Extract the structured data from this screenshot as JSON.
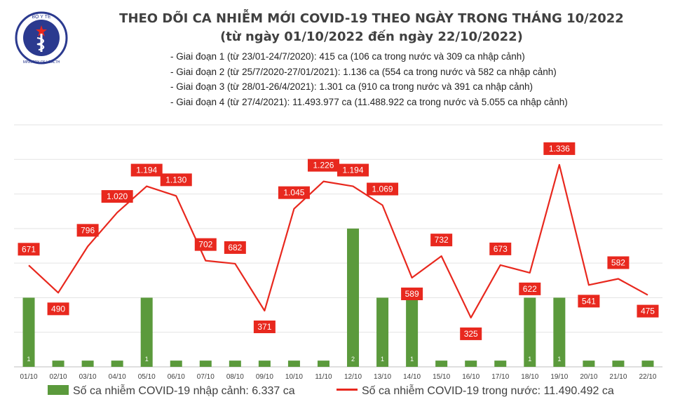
{
  "logo": {
    "top_text": "BỘ Y TẾ",
    "bottom_text": "MINISTRY OF HEALTH"
  },
  "title": {
    "line1": "THEO DÕI CA NHIỄM MỚI COVID-19 THEO NGÀY TRONG THÁNG 10/2022",
    "line2": "(từ ngày 01/10/2022 đến ngày 22/10/2022)"
  },
  "notes": [
    "- Giai đoạn 1 (từ 23/01-24/7/2020): 415 ca (106 ca trong nước và 309 ca nhập cảnh)",
    "- Giai đoạn 2 (từ 25/7/2020-27/01/2021): 1.136 ca (554 ca trong nước và 582 ca nhập cảnh)",
    "- Giai đoạn 3 (từ 28/01-26/4/2021): 1.301 ca (910 ca trong nước và 391 ca nhập cảnh)",
    "- Giai đoạn 4 (từ 27/4/2021): 11.493.977 ca (11.488.922 ca trong nước và 5.055 ca nhập cảnh)"
  ],
  "legend": {
    "bar_label": "Số ca nhiễm COVID-19 nhập cảnh: 6.337 ca",
    "line_label": "Số ca nhiễm COVID-19 trong nước: 11.490.492 ca"
  },
  "colors": {
    "bar": "#5b9a3c",
    "line": "#e8281e",
    "label_bg": "#e8281e",
    "grid": "#e3e3e3",
    "axis": "#bfbfbf",
    "text": "#404040"
  },
  "chart_data": {
    "type": "bar+line",
    "categories": [
      "01/10",
      "02/10",
      "03/10",
      "04/10",
      "05/10",
      "06/10",
      "07/10",
      "08/10",
      "09/10",
      "10/10",
      "11/10",
      "12/10",
      "13/10",
      "14/10",
      "15/10",
      "16/10",
      "17/10",
      "18/10",
      "19/10",
      "20/10",
      "21/10",
      "22/10"
    ],
    "series": [
      {
        "name": "Số ca nhiễm COVID-19 nhập cảnh: 6.337 ca",
        "type": "bar",
        "axis": "left",
        "values": [
          1,
          0,
          0,
          0,
          1,
          0,
          0,
          0,
          0,
          0,
          0,
          2,
          1,
          1,
          0,
          0,
          0,
          1,
          1,
          0,
          0,
          0
        ],
        "labels": [
          "1",
          "-",
          "-",
          "-",
          "1",
          "-",
          "-",
          "-",
          "-",
          "-",
          "-",
          "2",
          "1",
          "1",
          "-",
          "-",
          "-",
          "1",
          "1",
          "-",
          "-",
          "-"
        ]
      },
      {
        "name": "Số ca nhiễm COVID-19 trong nước: 11.490.492 ca",
        "type": "line",
        "axis": "right",
        "values": [
          671,
          490,
          796,
          1020,
          1194,
          1130,
          702,
          682,
          371,
          1045,
          1226,
          1194,
          1069,
          589,
          732,
          325,
          673,
          622,
          1336,
          541,
          582,
          475
        ],
        "labels": [
          "671",
          "490",
          "796",
          "1.020",
          "1.194",
          "1.130",
          "702",
          "682",
          "371",
          "1.045",
          "1.226",
          "1.194",
          "1.069",
          "589",
          "732",
          "325",
          "673",
          "622",
          "1.336",
          "541",
          "582",
          "475"
        ]
      }
    ],
    "left_ylim": [
      0,
      3.5
    ],
    "right_ylim": [
      0,
      1600
    ],
    "grid": true
  }
}
